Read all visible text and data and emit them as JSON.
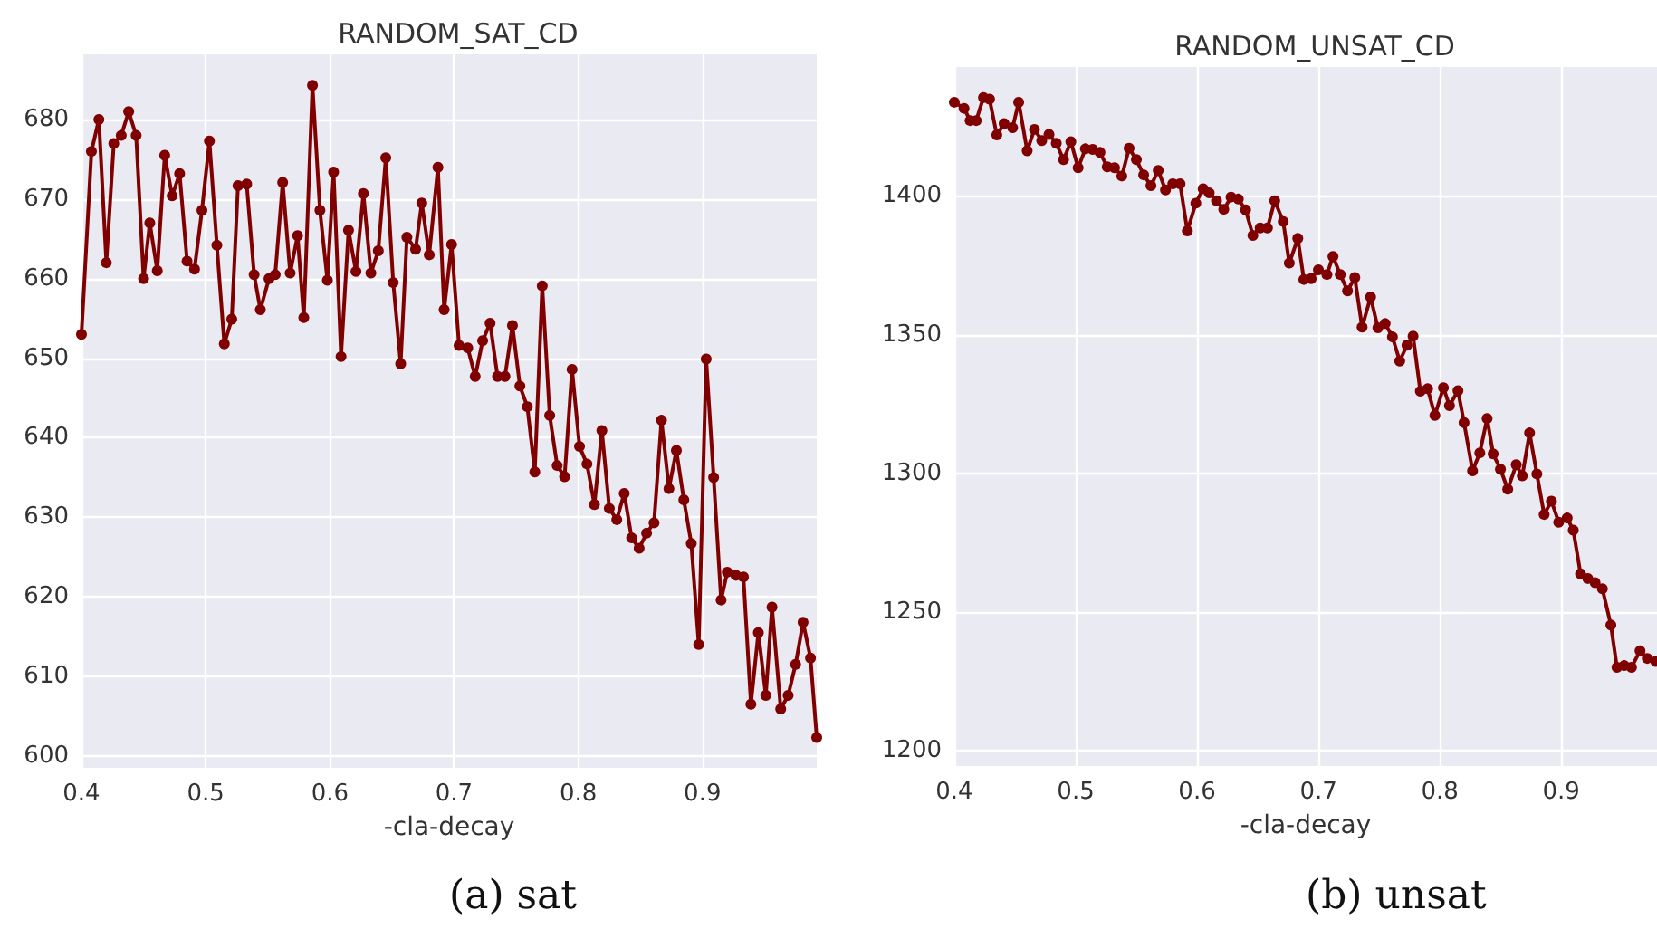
{
  "chart_data": [
    {
      "type": "line",
      "title": "RANDOM_SAT_CD",
      "xlabel": "-cla-decay",
      "annotations": [
        "(a) sat"
      ],
      "x": [
        0.4,
        0.408,
        0.414,
        0.42,
        0.426,
        0.432,
        0.438,
        0.444,
        0.45,
        0.455,
        0.461,
        0.467,
        0.473,
        0.479,
        0.485,
        0.491,
        0.497,
        0.503,
        0.509,
        0.515,
        0.521,
        0.526,
        0.533,
        0.539,
        0.544,
        0.551,
        0.556,
        0.562,
        0.568,
        0.574,
        0.579,
        0.586,
        0.592,
        0.598,
        0.603,
        0.609,
        0.615,
        0.621,
        0.627,
        0.633,
        0.639,
        0.645,
        0.651,
        0.657,
        0.662,
        0.669,
        0.674,
        0.68,
        0.687,
        0.692,
        0.698,
        0.704,
        0.711,
        0.717,
        0.723,
        0.729,
        0.735,
        0.741,
        0.747,
        0.753,
        0.759,
        0.765,
        0.771,
        0.777,
        0.783,
        0.789,
        0.795,
        0.801,
        0.807,
        0.813,
        0.819,
        0.825,
        0.831,
        0.837,
        0.843,
        0.849,
        0.855,
        0.861,
        0.867,
        0.873,
        0.879,
        0.885,
        0.891,
        0.897,
        0.903,
        0.909,
        0.915,
        0.92,
        0.927,
        0.933,
        0.939,
        0.945,
        0.951,
        0.956,
        0.963,
        0.969,
        0.975,
        0.981,
        0.987,
        0.992
      ],
      "series": [
        {
          "color": "#800000",
          "values": [
            653,
            676,
            680,
            662,
            677,
            678,
            681,
            678,
            660,
            667,
            661,
            675.5,
            670.4,
            673.2,
            662.2,
            661.2,
            668.6,
            677.3,
            664.2,
            651.8,
            654.9,
            671.7,
            671.9,
            660.5,
            656.1,
            660,
            660.5,
            672.1,
            660.7,
            665.4,
            655.1,
            684.3,
            668.6,
            659.8,
            673.4,
            650.2,
            666.1,
            660.9,
            670.7,
            660.7,
            663.5,
            675.2,
            659.5,
            649.3,
            665.2,
            663.7,
            669.5,
            663,
            674,
            656.1,
            664.3,
            651.6,
            651.3,
            647.7,
            652.2,
            654.4,
            647.7,
            647.7,
            654.1,
            646.5,
            643.9,
            635.7,
            659.1,
            642.8,
            636.5,
            635.1,
            648.6,
            638.9,
            636.7,
            631.6,
            640.9,
            631.1,
            629.7,
            633,
            627.4,
            626.1,
            628,
            629.3,
            642.2,
            633.6,
            638.4,
            632.2,
            626.7,
            614,
            649.9,
            635,
            619.6,
            623.1,
            622.7,
            622.5,
            606.5,
            615.5,
            607.6,
            618.7,
            605.9,
            607.6,
            611.5,
            616.8,
            612.3,
            602.3
          ]
        }
      ],
      "xlim": [
        0.4,
        0.992
      ],
      "xticks": [
        0.4,
        0.5,
        0.6,
        0.7,
        0.8,
        0.9
      ],
      "ylim": [
        598.5,
        688.2
      ],
      "yticks": [
        600,
        610,
        620,
        630,
        640,
        650,
        660,
        670,
        680
      ],
      "grid": true,
      "marker": "circle",
      "line_style": "solid"
    },
    {
      "type": "line",
      "title": "RANDOM_UNSAT_CD",
      "xlabel": "-cla-decay",
      "annotations": [
        "(b) unsat"
      ],
      "x": [
        0.4,
        0.408,
        0.413,
        0.418,
        0.424,
        0.429,
        0.435,
        0.441,
        0.448,
        0.453,
        0.46,
        0.466,
        0.472,
        0.478,
        0.484,
        0.49,
        0.496,
        0.502,
        0.508,
        0.514,
        0.52,
        0.526,
        0.532,
        0.538,
        0.544,
        0.55,
        0.556,
        0.562,
        0.568,
        0.574,
        0.58,
        0.586,
        0.592,
        0.599,
        0.605,
        0.61,
        0.616,
        0.622,
        0.628,
        0.634,
        0.64,
        0.646,
        0.652,
        0.658,
        0.664,
        0.671,
        0.676,
        0.683,
        0.688,
        0.694,
        0.7,
        0.707,
        0.712,
        0.718,
        0.724,
        0.73,
        0.736,
        0.743,
        0.749,
        0.755,
        0.761,
        0.767,
        0.773,
        0.778,
        0.784,
        0.79,
        0.796,
        0.803,
        0.808,
        0.815,
        0.82,
        0.827,
        0.833,
        0.839,
        0.844,
        0.85,
        0.856,
        0.863,
        0.868,
        0.874,
        0.88,
        0.886,
        0.892,
        0.898,
        0.905,
        0.91,
        0.916,
        0.922,
        0.928,
        0.934,
        0.941,
        0.946,
        0.952,
        0.958,
        0.965,
        0.971,
        0.978
      ],
      "series": [
        {
          "color": "#800000",
          "values": [
            1433.8,
            1431.6,
            1427.2,
            1427.2,
            1435.5,
            1434.9,
            1422,
            1426.1,
            1424.6,
            1433.8,
            1416.3,
            1424,
            1420,
            1422.2,
            1419,
            1413.1,
            1419.6,
            1410.2,
            1417,
            1416.8,
            1415.7,
            1410.5,
            1410.2,
            1407.2,
            1417.2,
            1413.1,
            1407.6,
            1403.7,
            1409.2,
            1402.2,
            1404.4,
            1404.4,
            1387.4,
            1397.4,
            1402.6,
            1401.1,
            1398.3,
            1395.2,
            1399.6,
            1398.9,
            1395,
            1385.8,
            1388.5,
            1388.5,
            1398.3,
            1390.8,
            1375.8,
            1384.7,
            1369.9,
            1370.2,
            1373.4,
            1371.7,
            1378.2,
            1371.7,
            1365.8,
            1370.6,
            1352.7,
            1363.6,
            1352.5,
            1354,
            1349.2,
            1340.5,
            1346.2,
            1349.5,
            1329.6,
            1330.5,
            1320.9,
            1330.9,
            1324.4,
            1329.8,
            1318.3,
            1300.9,
            1307.4,
            1319.8,
            1307,
            1301.5,
            1294.3,
            1303.1,
            1299.1,
            1314.6,
            1299.8,
            1285.2,
            1290,
            1282.4,
            1283.9,
            1279.5,
            1263.8,
            1262.1,
            1260.6,
            1258.4,
            1245.3,
            1230.1,
            1230.7,
            1230.1,
            1236,
            1233.3,
            1232.2
          ]
        }
      ],
      "xlim": [
        0.4,
        0.979
      ],
      "xticks": [
        0.4,
        0.5,
        0.6,
        0.7,
        0.8,
        0.9
      ],
      "ylim": [
        1194.5,
        1446.5
      ],
      "yticks": [
        1200,
        1250,
        1300,
        1350,
        1400
      ],
      "grid": true,
      "marker": "circle",
      "line_style": "solid"
    }
  ]
}
